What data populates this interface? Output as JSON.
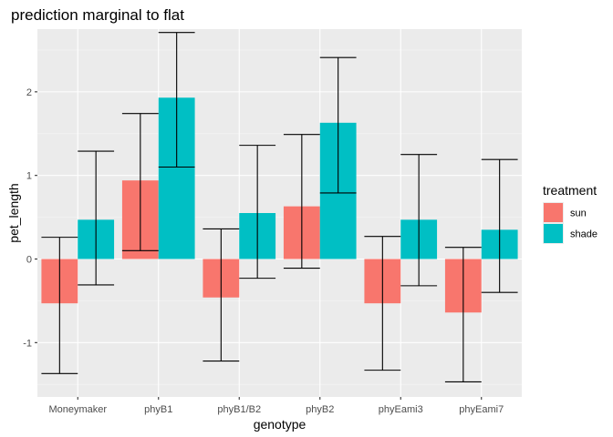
{
  "chart_data": {
    "type": "bar",
    "title": "prediction marginal to flat",
    "xlabel": "genotype",
    "ylabel": "pet_length",
    "categories": [
      "Moneymaker",
      "phyB1",
      "phyB1/B2",
      "phyB2",
      "phyEami3",
      "phyEami7"
    ],
    "ylim": [
      -1.65,
      2.75
    ],
    "yticks": [
      -1,
      0,
      1,
      2
    ],
    "ytick_labels": [
      "-1",
      "0",
      "1",
      "2"
    ],
    "grid": true,
    "legend": {
      "title": "treatment",
      "placement": "right"
    },
    "series": [
      {
        "name": "sun",
        "color": "#F8766D",
        "values": [
          -0.53,
          0.94,
          -0.46,
          0.63,
          -0.53,
          -0.64
        ],
        "error_low": [
          -1.37,
          0.1,
          -1.22,
          -0.11,
          -1.33,
          -1.47
        ],
        "error_high": [
          0.26,
          1.74,
          0.36,
          1.49,
          0.27,
          0.14
        ]
      },
      {
        "name": "shade",
        "color": "#00BFC4",
        "values": [
          0.47,
          1.93,
          0.55,
          1.63,
          0.47,
          0.35
        ],
        "error_low": [
          -0.31,
          1.1,
          -0.23,
          0.79,
          -0.32,
          -0.4
        ],
        "error_high": [
          1.29,
          2.71,
          1.36,
          2.41,
          1.25,
          1.19
        ]
      }
    ]
  },
  "colors": {
    "panel": "#EBEBEB",
    "grid_major": "#FFFFFF",
    "grid_minor": "#F5F5F5",
    "errorbar": "#000000"
  }
}
